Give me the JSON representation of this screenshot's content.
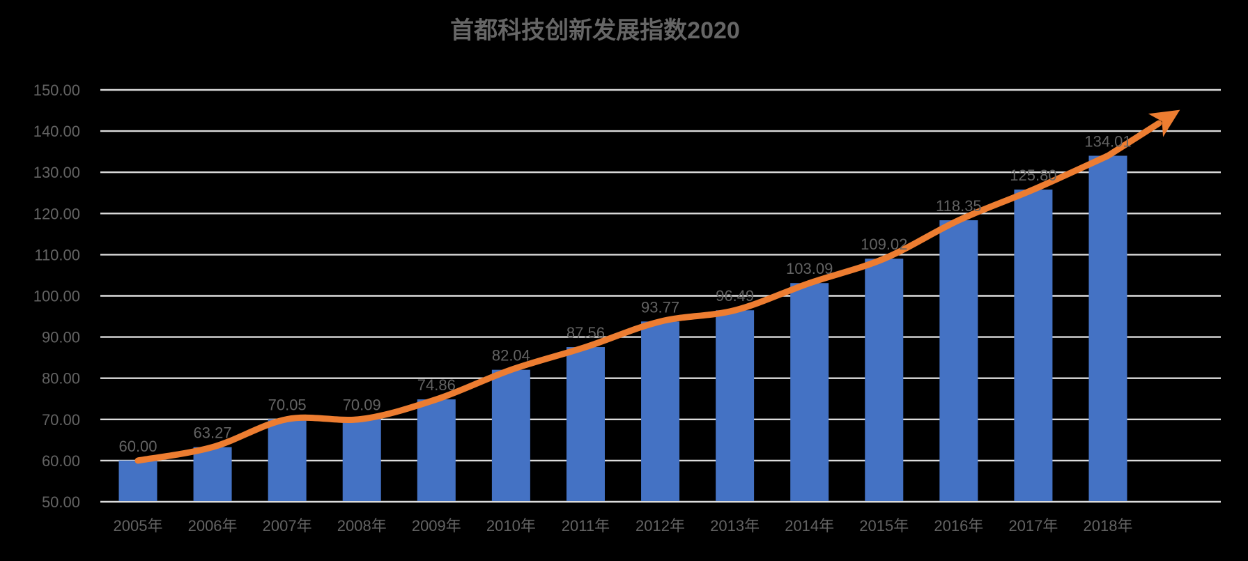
{
  "title": "首都科技创新发展指数2020",
  "colors": {
    "background": "#000000",
    "bar": "#4472C4",
    "line": "#ED7D31",
    "grid": "#DCDCDC",
    "axis_text": "#636363",
    "title_text": "#666666"
  },
  "chart_data": {
    "type": "bar",
    "overlay": "line-with-arrow",
    "title": "首都科技创新发展指数2020",
    "xlabel": "",
    "ylabel": "",
    "categories": [
      "2005年",
      "2006年",
      "2007年",
      "2008年",
      "2009年",
      "2010年",
      "2011年",
      "2012年",
      "2013年",
      "2014年",
      "2015年",
      "2016年",
      "2017年",
      "2018年"
    ],
    "values": [
      60.0,
      63.27,
      70.05,
      70.09,
      74.86,
      82.04,
      87.56,
      93.77,
      96.49,
      103.09,
      109.02,
      118.35,
      125.8,
      134.01
    ],
    "data_labels": [
      "60.00",
      "63.27",
      "70.05",
      "70.09",
      "74.86",
      "82.04",
      "87.56",
      "93.77",
      "96.49",
      "103.09",
      "109.02",
      "118.35",
      "125.80",
      "134.01"
    ],
    "trend_line": {
      "follows_values": true,
      "smoothed": true,
      "arrow_end": true
    },
    "ylim": [
      50,
      150
    ],
    "ytick_step": 10,
    "yticks": [
      "50.00",
      "60.00",
      "70.00",
      "80.00",
      "90.00",
      "100.00",
      "110.00",
      "120.00",
      "130.00",
      "140.00",
      "150.00"
    ],
    "grid": true,
    "legend": "none"
  }
}
